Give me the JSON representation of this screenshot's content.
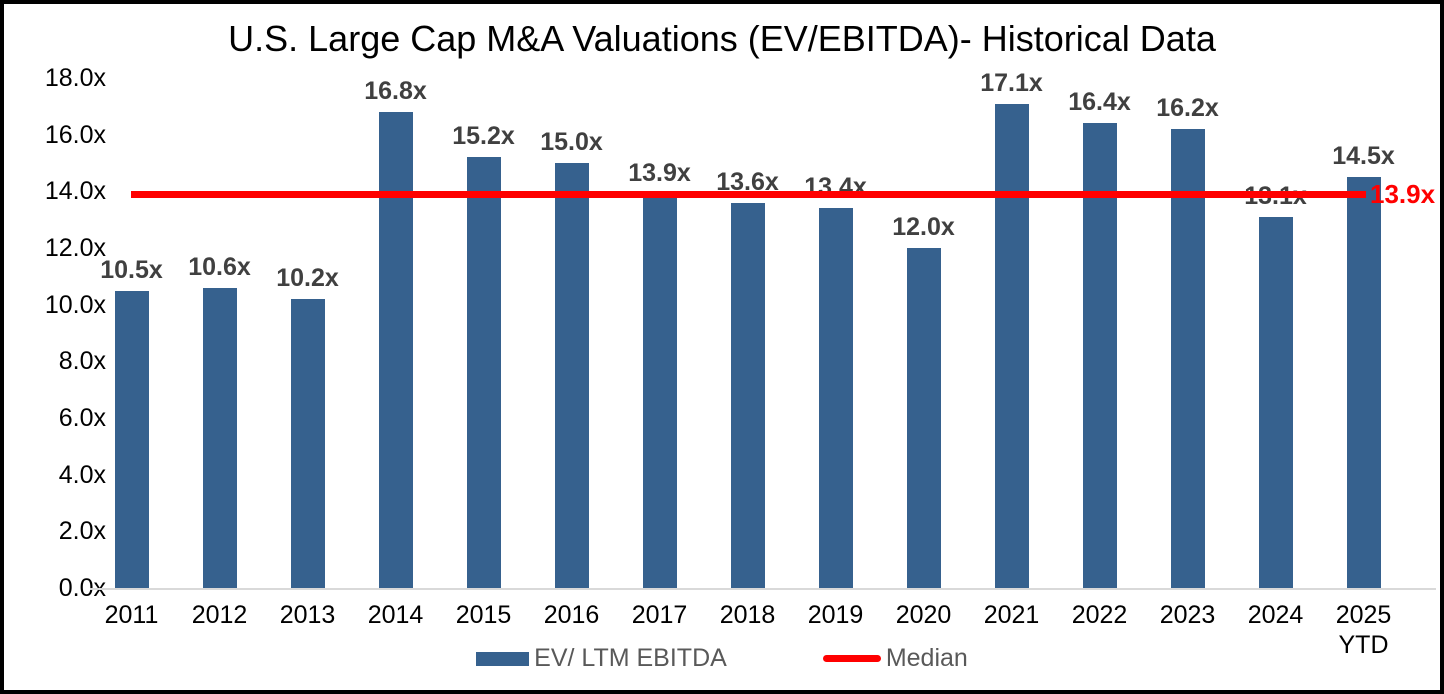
{
  "title": "U.S. Large Cap M&A Valuations (EV/EBITDA)- Historical Data",
  "chart_data": {
    "type": "bar",
    "categories": [
      "2011",
      "2012",
      "2013",
      "2014",
      "2015",
      "2016",
      "2017",
      "2018",
      "2019",
      "2020",
      "2021",
      "2022",
      "2023",
      "2024",
      "2025\nYTD"
    ],
    "series": [
      {
        "name": "EV/ LTM EBITDA",
        "values": [
          10.5,
          10.6,
          10.2,
          16.8,
          15.2,
          15.0,
          13.9,
          13.6,
          13.4,
          12.0,
          17.1,
          16.4,
          16.2,
          13.1,
          14.5
        ],
        "labels": [
          "10.5x",
          "10.6x",
          "10.2x",
          "16.8x",
          "15.2x",
          "15.0x",
          "13.9x",
          "13.6x",
          "13.4x",
          "12.0x",
          "17.1x",
          "16.4x",
          "16.2x",
          "13.1x",
          "14.5x"
        ],
        "color": "#36618E"
      }
    ],
    "median_line": {
      "name": "Median",
      "value": 13.9,
      "label": "13.9x",
      "color": "#FF0000"
    },
    "ylim": [
      0,
      18
    ],
    "ytick_step": 2,
    "ytick_labels": [
      "0.0x",
      "2.0x",
      "4.0x",
      "6.0x",
      "8.0x",
      "10.0x",
      "12.0x",
      "14.0x",
      "16.0x",
      "18.0x"
    ],
    "grid": false,
    "legend_position": "bottom"
  },
  "legend": {
    "items": [
      {
        "label": "EV/ LTM EBITDA",
        "swatch": "bar",
        "color": "#36618E"
      },
      {
        "label": "Median",
        "swatch": "line",
        "color": "#FF0000"
      }
    ]
  },
  "colors": {
    "bar": "#36618E",
    "median": "#FF0000",
    "data_label": "#404040",
    "axis_line": "#D9D9D9",
    "legend_text": "#595959",
    "background": "#FFFFFF",
    "border": "#000000"
  }
}
